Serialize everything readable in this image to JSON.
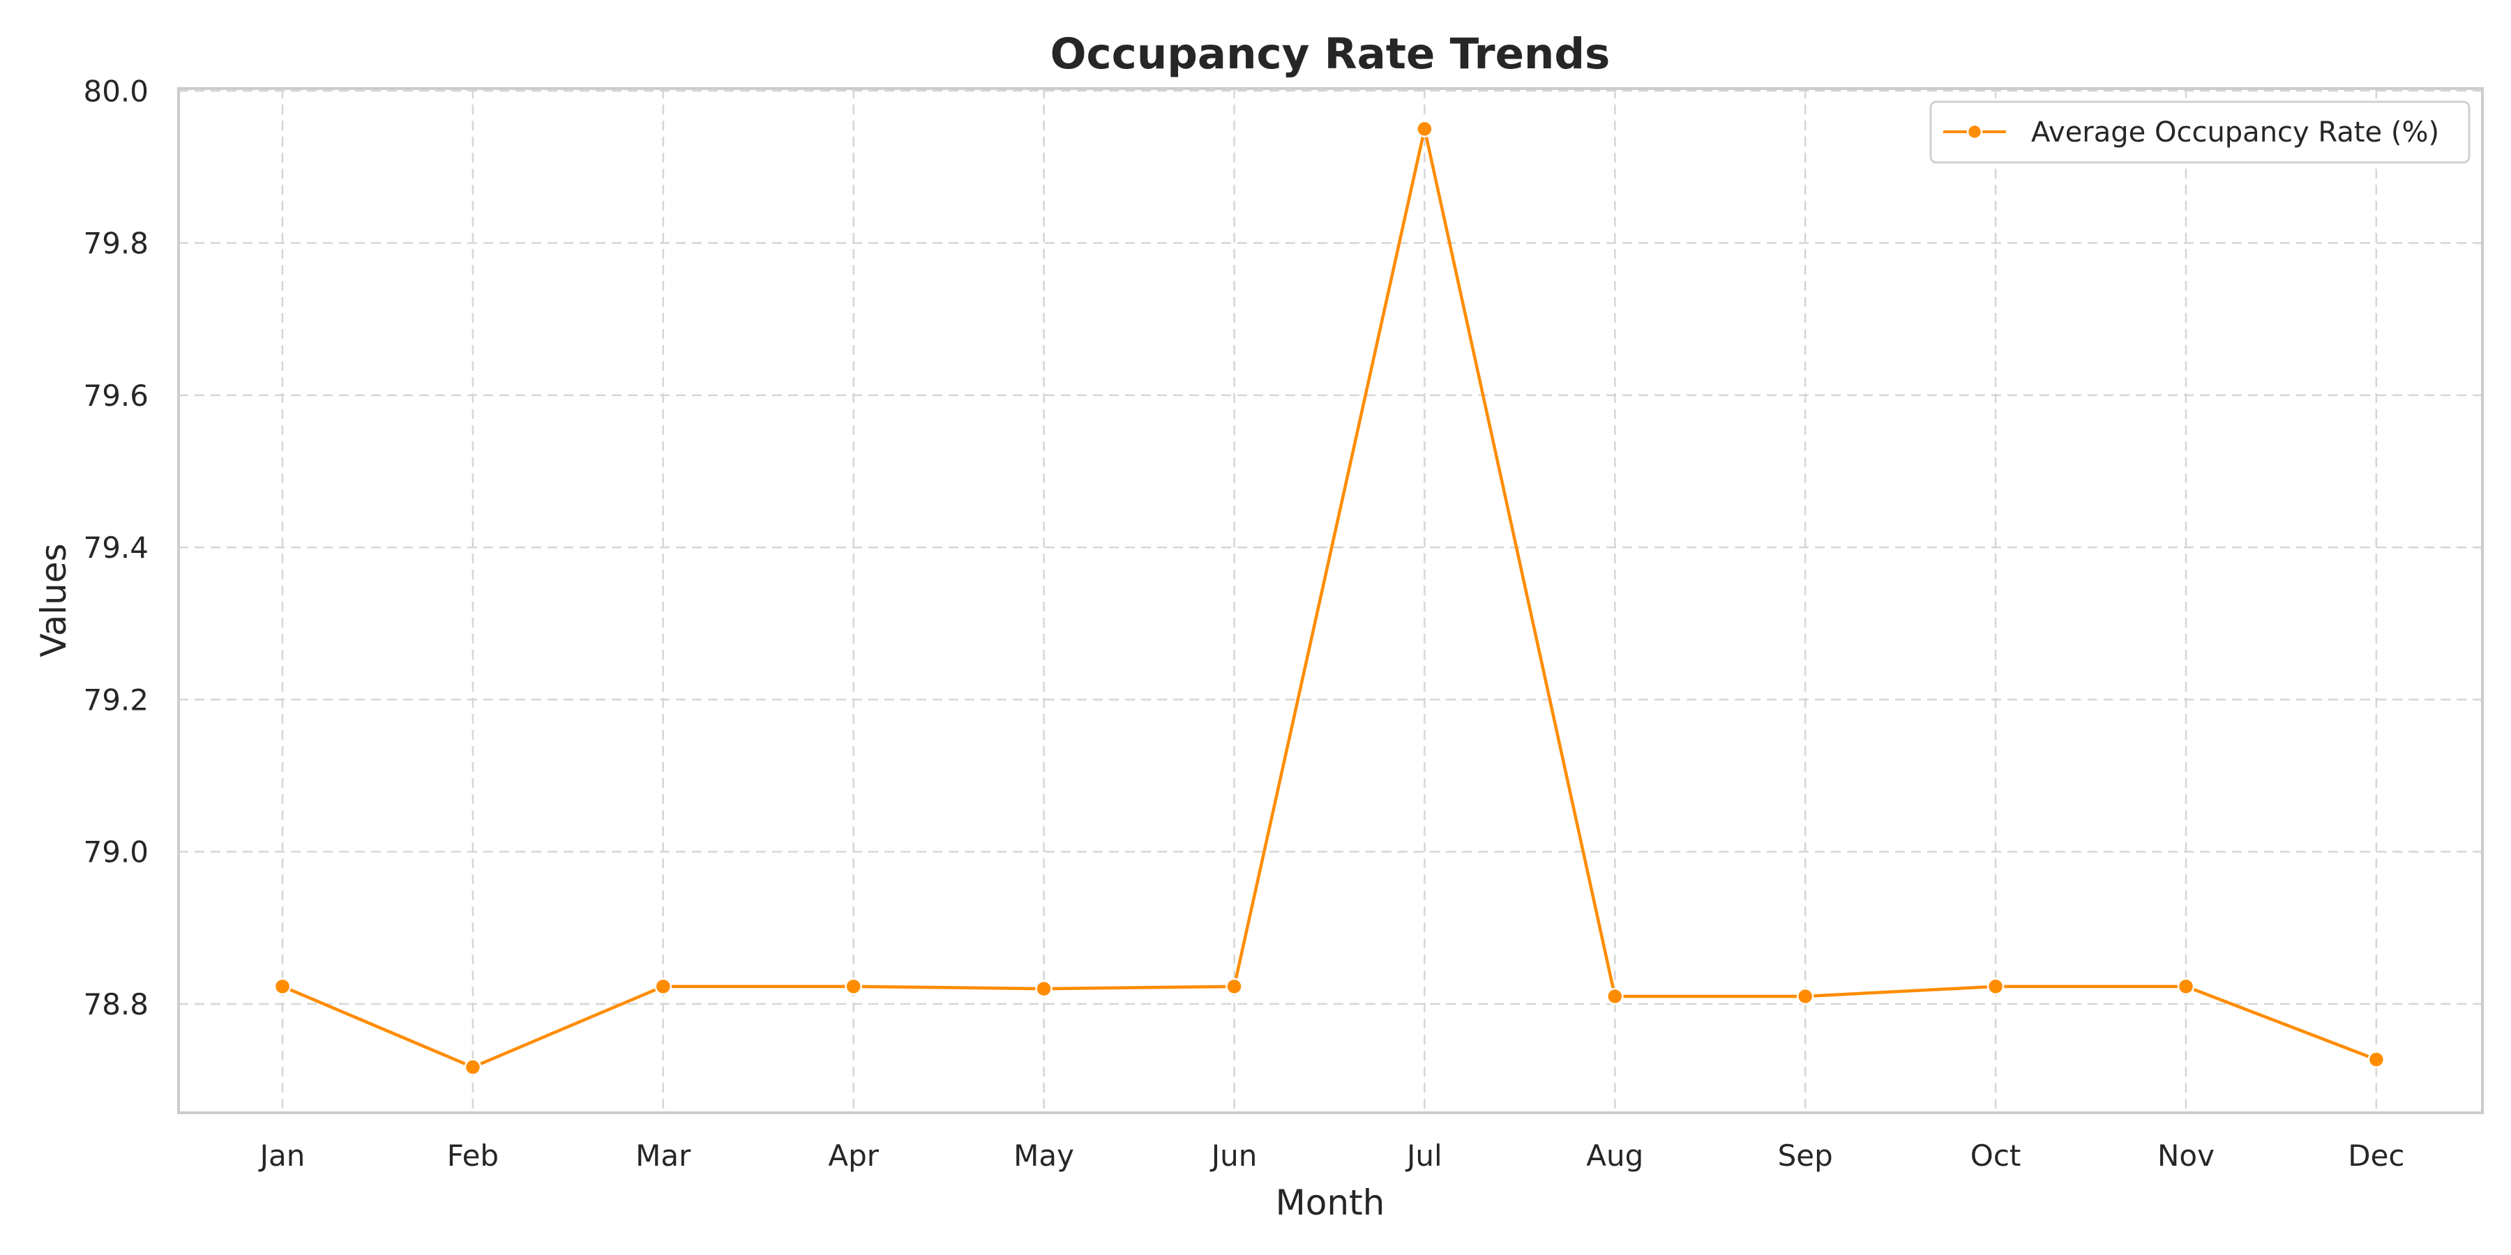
{
  "chart_data": {
    "type": "line",
    "title": "Occupancy Rate Trends",
    "xlabel": "Month",
    "ylabel": "Values",
    "categories": [
      "Jan",
      "Feb",
      "Mar",
      "Apr",
      "May",
      "Jun",
      "Jul",
      "Aug",
      "Sep",
      "Oct",
      "Nov",
      "Dec"
    ],
    "series": [
      {
        "name": "Average Occupancy Rate (%)",
        "color": "#ff8c00",
        "marker": "circle",
        "values": [
          78.823,
          78.717,
          78.823,
          78.823,
          78.82,
          78.823,
          79.95,
          78.81,
          78.81,
          78.823,
          78.823,
          78.727
        ]
      }
    ],
    "ylim": [
      78.657,
      80.003
    ],
    "yticks": [
      78.8,
      79.0,
      79.2,
      79.4,
      79.6,
      79.8,
      80.0
    ],
    "grid": true,
    "legend_position": "top-right"
  }
}
